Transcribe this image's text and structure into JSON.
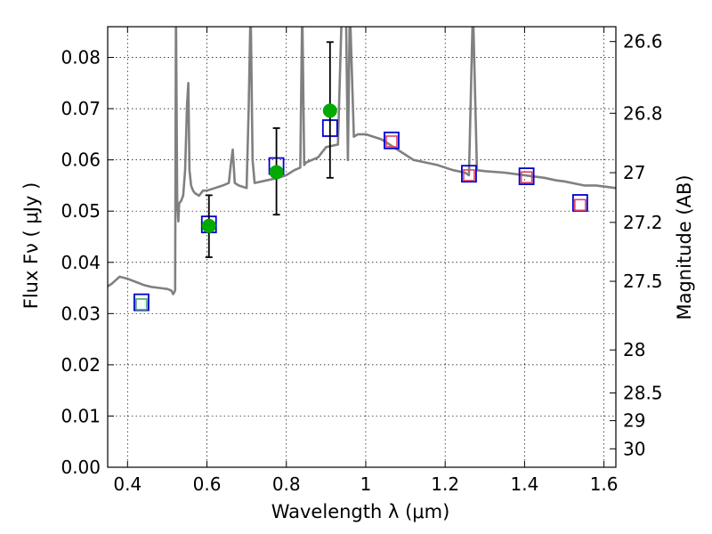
{
  "chart_data": {
    "type": "scatter",
    "xlabel": "Wavelength  λ (μm)",
    "ylabel": "Flux  Fν  ( μJy )",
    "y2label": "Magnitude (AB)",
    "xlim": [
      0.35,
      1.63
    ],
    "ylim": [
      0.0,
      0.086
    ],
    "grid": true,
    "x_ticks": [
      0.4,
      0.6,
      0.8,
      1.0,
      1.2,
      1.4,
      1.6
    ],
    "x_tick_labels": [
      "0.4",
      "0.6",
      "0.8",
      "1",
      "1.2",
      "1.4",
      "1.6"
    ],
    "y_ticks": [
      0.0,
      0.01,
      0.02,
      0.03,
      0.04,
      0.05,
      0.06,
      0.07,
      0.08
    ],
    "y_tick_labels": [
      "0.00",
      "0.01",
      "0.02",
      "0.03",
      "0.04",
      "0.05",
      "0.06",
      "0.07",
      "0.08"
    ],
    "mag_ticks": [
      {
        "label": "26.6",
        "flux": 0.0831
      },
      {
        "label": "26.8",
        "flux": 0.0691
      },
      {
        "label": "27",
        "flux": 0.0575
      },
      {
        "label": "27.2",
        "flux": 0.0478
      },
      {
        "label": "27.5",
        "flux": 0.0363
      },
      {
        "label": "28",
        "flux": 0.0229
      },
      {
        "label": "28.5",
        "flux": 0.0145
      },
      {
        "label": "29",
        "flux": 0.0091
      },
      {
        "label": "30",
        "flux": 0.0036
      }
    ],
    "colors": {
      "sed": "#808080",
      "model_box": "#0000cc",
      "observed": "#00aa00",
      "errorbar": "#000000",
      "inner_optical": "#44aa66",
      "inner_nir": "#dd4466"
    },
    "series": [
      {
        "kind": "line",
        "x": [
          0.35,
          0.36,
          0.37,
          0.38,
          0.39,
          0.4,
          0.42,
          0.44,
          0.46,
          0.48,
          0.5,
          0.51,
          0.515,
          0.52,
          0.522,
          0.525,
          0.528,
          0.53,
          0.535,
          0.54,
          0.545,
          0.55,
          0.553,
          0.556,
          0.56,
          0.565,
          0.57,
          0.58,
          0.59,
          0.6,
          0.62,
          0.64,
          0.655,
          0.66,
          0.665,
          0.67,
          0.68,
          0.7,
          0.705,
          0.71,
          0.715,
          0.72,
          0.75,
          0.78,
          0.8,
          0.82,
          0.835,
          0.84,
          0.845,
          0.85,
          0.88,
          0.9,
          0.93,
          0.94,
          0.95,
          0.955,
          0.96,
          0.97,
          0.98,
          1.0,
          1.02,
          1.04,
          1.06,
          1.08,
          1.1,
          1.12,
          1.15,
          1.18,
          1.2,
          1.22,
          1.25,
          1.26,
          1.27,
          1.28,
          1.3,
          1.35,
          1.4,
          1.45,
          1.48,
          1.5,
          1.52,
          1.55,
          1.58,
          1.6,
          1.63
        ],
        "y": [
          0.0353,
          0.0358,
          0.0365,
          0.0372,
          0.037,
          0.0368,
          0.0362,
          0.0356,
          0.0352,
          0.035,
          0.0348,
          0.0345,
          0.0338,
          0.0345,
          0.09,
          0.052,
          0.048,
          0.0515,
          0.052,
          0.053,
          0.058,
          0.071,
          0.075,
          0.058,
          0.055,
          0.054,
          0.0535,
          0.053,
          0.054,
          0.054,
          0.0545,
          0.055,
          0.0555,
          0.059,
          0.062,
          0.0555,
          0.055,
          0.0545,
          0.07,
          0.09,
          0.06,
          0.0555,
          0.056,
          0.0565,
          0.057,
          0.058,
          0.0585,
          0.09,
          0.059,
          0.0595,
          0.0605,
          0.0625,
          0.063,
          0.09,
          0.09,
          0.06,
          0.09,
          0.0645,
          0.065,
          0.065,
          0.0645,
          0.064,
          0.063,
          0.062,
          0.061,
          0.06,
          0.0595,
          0.059,
          0.0585,
          0.058,
          0.0575,
          0.057,
          0.09,
          0.058,
          0.0578,
          0.0575,
          0.057,
          0.0565,
          0.056,
          0.0558,
          0.0555,
          0.055,
          0.055,
          0.0548,
          0.0545
        ]
      },
      {
        "kind": "box",
        "x": [
          0.435,
          0.605,
          0.775,
          0.91,
          1.065,
          1.26,
          1.405,
          1.54
        ],
        "y": [
          0.0322,
          0.0474,
          0.0588,
          0.0662,
          0.0638,
          0.0573,
          0.0568,
          0.0516
        ]
      },
      {
        "kind": "point",
        "x": [
          0.605,
          0.775,
          0.91
        ],
        "y": [
          0.0471,
          0.0576,
          0.0696
        ],
        "yerr_low": [
          0.041,
          0.0493,
          0.0565
        ],
        "yerr_high": [
          0.0531,
          0.0662,
          0.083
        ]
      }
    ],
    "inner_markers": [
      {
        "x": 0.435,
        "y": 0.0318,
        "kind": "optical"
      },
      {
        "x": 1.065,
        "y": 0.0636,
        "kind": "nir"
      },
      {
        "x": 1.26,
        "y": 0.057,
        "kind": "nir"
      },
      {
        "x": 1.405,
        "y": 0.0566,
        "kind": "nir"
      },
      {
        "x": 1.54,
        "y": 0.0512,
        "kind": "nir"
      }
    ]
  }
}
